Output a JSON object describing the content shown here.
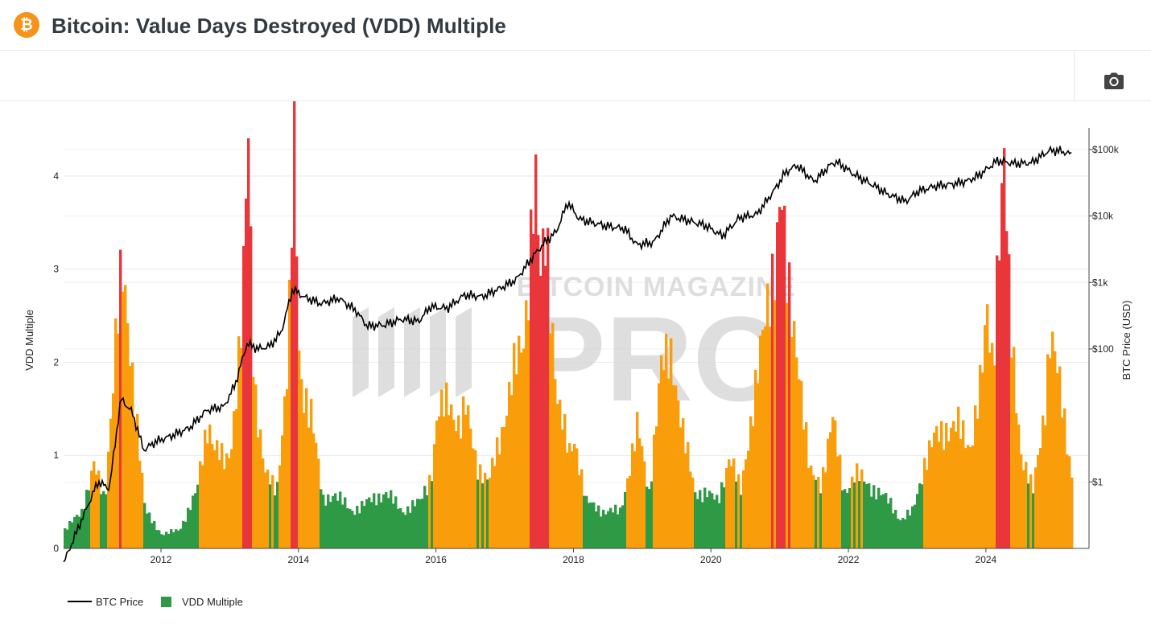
{
  "header": {
    "logo_symbol": "₿",
    "logo_icon": "bitcoin-logo-icon",
    "title": "Bitcoin: Value Days Destroyed (VDD) Multiple"
  },
  "toolbar": {
    "screenshot_icon": "camera-icon"
  },
  "colors": {
    "price_line": "#000000",
    "vdd_low": "#2f9a45",
    "vdd_mid": "#f99d0a",
    "vdd_high": "#e8363a",
    "watermark": "#d4d4d4",
    "accent": "#f7931a"
  },
  "watermark": {
    "line1": "BITCOIN MAGAZINE",
    "line2": "PRO"
  },
  "chart_data": {
    "type": "area",
    "xlabel": "",
    "ylabel_left": "VDD Multiple",
    "ylabel_right": "BTC Price (USD)",
    "x_range": [
      "2010-08",
      "2025-07"
    ],
    "x_ticks": [
      "2012",
      "2014",
      "2016",
      "2018",
      "2020",
      "2022",
      "2024"
    ],
    "y_left_range": [
      0,
      4.5
    ],
    "y_left_ticks": [
      "0",
      "1",
      "2",
      "3",
      "4"
    ],
    "y_right_scale": "log",
    "y_right_range": [
      0.1,
      200000
    ],
    "y_right_ticks": [
      "$1",
      "$100",
      "$1k",
      "$10k",
      "$100k"
    ],
    "y_right_tick_values": [
      1,
      100,
      1000,
      10000,
      100000
    ],
    "grid": true,
    "legend_position": "bottom-left",
    "legend": [
      "BTC Price",
      "VDD Multiple"
    ],
    "series": [
      {
        "name": "BTC Price",
        "axis": "right",
        "x": [
          "2010-08",
          "2010-11",
          "2011-02",
          "2011-04",
          "2011-06",
          "2011-08",
          "2011-10",
          "2011-12",
          "2012-03",
          "2012-06",
          "2012-09",
          "2012-12",
          "2013-02",
          "2013-04",
          "2013-06",
          "2013-08",
          "2013-10",
          "2013-12",
          "2014-02",
          "2014-05",
          "2014-08",
          "2014-11",
          "2015-01",
          "2015-04",
          "2015-07",
          "2015-10",
          "2015-12",
          "2016-03",
          "2016-06",
          "2016-09",
          "2016-12",
          "2017-03",
          "2017-06",
          "2017-08",
          "2017-10",
          "2017-12",
          "2018-02",
          "2018-04",
          "2018-07",
          "2018-10",
          "2018-12",
          "2019-03",
          "2019-06",
          "2019-09",
          "2019-12",
          "2020-03",
          "2020-06",
          "2020-09",
          "2020-12",
          "2021-02",
          "2021-04",
          "2021-07",
          "2021-10",
          "2021-11",
          "2022-02",
          "2022-05",
          "2022-08",
          "2022-11",
          "2023-01",
          "2023-04",
          "2023-07",
          "2023-10",
          "2023-12",
          "2024-03",
          "2024-06",
          "2024-09",
          "2024-12",
          "2025-02",
          "2025-04",
          "2025-06"
        ],
        "values": [
          0.06,
          0.25,
          1,
          0.8,
          18,
          11,
          3,
          4,
          5,
          6.5,
          12,
          13.5,
          30,
          120,
          100,
          110,
          180,
          800,
          600,
          480,
          580,
          380,
          220,
          230,
          280,
          260,
          430,
          410,
          650,
          610,
          800,
          1100,
          2500,
          4000,
          5800,
          16000,
          9000,
          8000,
          7000,
          6400,
          3700,
          4000,
          10000,
          8500,
          7200,
          5000,
          9400,
          10500,
          24000,
          45000,
          58000,
          33000,
          60000,
          65000,
          42000,
          30000,
          21000,
          16500,
          23000,
          28000,
          30000,
          34000,
          42000,
          68000,
          61000,
          63000,
          96000,
          95000,
          84000,
          105000
        ]
      },
      {
        "name": "VDD Multiple",
        "axis": "left",
        "color_rule": "green below 0.75, orange between 0.75 and 2.9, red above 2.9",
        "x": [
          "2010-08",
          "2010-11",
          "2011-01",
          "2011-03",
          "2011-05",
          "2011-06",
          "2011-08",
          "2011-10",
          "2012-01",
          "2012-04",
          "2012-07",
          "2012-09",
          "2012-10",
          "2012-12",
          "2013-01",
          "2013-03",
          "2013-04",
          "2013-05",
          "2013-07",
          "2013-09",
          "2013-11",
          "2013-12",
          "2014-01",
          "2014-03",
          "2014-05",
          "2014-07",
          "2014-10",
          "2015-01",
          "2015-04",
          "2015-07",
          "2015-10",
          "2015-12",
          "2016-01",
          "2016-03",
          "2016-05",
          "2016-06",
          "2016-08",
          "2016-10",
          "2016-12",
          "2017-02",
          "2017-04",
          "2017-05",
          "2017-06",
          "2017-07",
          "2017-08",
          "2017-09",
          "2017-10",
          "2017-12",
          "2018-01",
          "2018-03",
          "2018-06",
          "2018-09",
          "2018-12",
          "2019-02",
          "2019-04",
          "2019-06",
          "2019-08",
          "2019-10",
          "2019-12",
          "2020-02",
          "2020-04",
          "2020-06",
          "2020-08",
          "2020-10",
          "2020-12",
          "2021-01",
          "2021-02",
          "2021-04",
          "2021-06",
          "2021-08",
          "2021-10",
          "2021-12",
          "2022-02",
          "2022-04",
          "2022-06",
          "2022-08",
          "2022-10",
          "2022-12",
          "2023-02",
          "2023-04",
          "2023-06",
          "2023-08",
          "2023-10",
          "2023-12",
          "2024-01",
          "2024-02",
          "2024-03",
          "2024-04",
          "2024-05",
          "2024-07",
          "2024-09",
          "2024-11",
          "2024-12",
          "2025-02",
          "2025-04",
          "2025-06"
        ],
        "values": [
          0.2,
          0.4,
          0.9,
          0.5,
          2.4,
          2.9,
          1.8,
          0.4,
          0.15,
          0.2,
          0.6,
          1.4,
          1.1,
          0.9,
          1.1,
          2.5,
          4.4,
          1.8,
          0.8,
          0.6,
          2.1,
          4.3,
          1.8,
          1.5,
          0.5,
          0.6,
          0.4,
          0.5,
          0.6,
          0.4,
          0.5,
          0.8,
          1.4,
          1.6,
          1.3,
          1.5,
          0.9,
          0.7,
          1.2,
          1.8,
          2.2,
          3.0,
          4.1,
          2.8,
          3.4,
          2.5,
          1.6,
          1.0,
          1.2,
          0.5,
          0.4,
          0.4,
          1.3,
          0.6,
          1.9,
          2.1,
          1.2,
          0.6,
          0.6,
          0.5,
          1.0,
          0.6,
          1.5,
          2.3,
          3.2,
          3.9,
          2.8,
          2.1,
          0.8,
          0.7,
          1.4,
          0.6,
          0.8,
          0.7,
          0.6,
          0.5,
          0.3,
          0.4,
          0.9,
          1.2,
          1.3,
          1.3,
          1.1,
          1.8,
          2.5,
          2.0,
          3.4,
          4.1,
          2.4,
          1.0,
          0.6,
          1.5,
          2.3,
          1.6,
          0.7,
          1.4
        ]
      }
    ]
  }
}
